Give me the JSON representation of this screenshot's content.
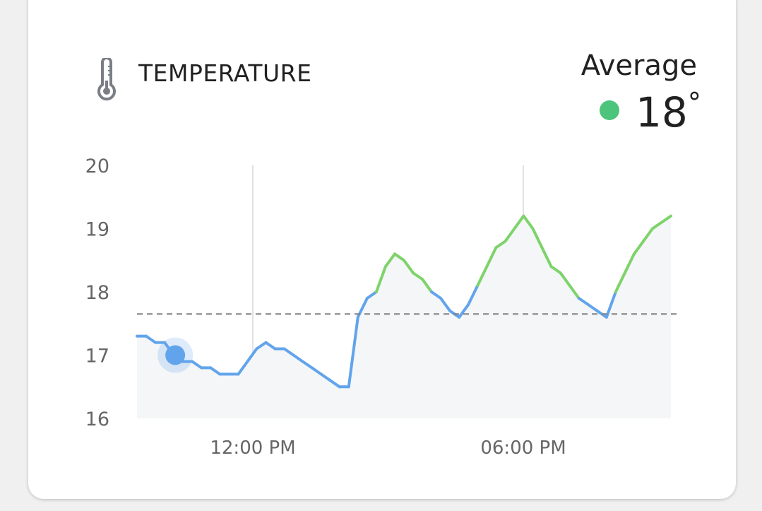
{
  "card": {
    "title": "TEMPERATURE",
    "average_label": "Average",
    "average_value": "18",
    "average_unit": "°",
    "average_dot_color": "#4cc47b",
    "icon": "thermometer-icon"
  },
  "chart_data": {
    "type": "line",
    "y_ticks": [
      "20",
      "19",
      "18",
      "17",
      "16"
    ],
    "x_ticks": [
      "12:00 PM",
      "06:00 PM"
    ],
    "ylim": [
      16,
      20
    ],
    "average_line": 17.65,
    "colors": {
      "below": "#62a4ec",
      "above": "#7ed36a",
      "fill": "#f4f6f7",
      "avg": "#808080"
    },
    "series": [
      {
        "values": [
          17.3,
          17.3,
          17.2,
          17.2,
          17.0,
          16.9,
          16.9,
          16.8,
          16.8,
          16.7,
          16.7,
          16.7,
          16.9,
          17.1,
          17.2,
          17.1,
          17.1,
          17.0,
          16.9,
          16.8,
          16.7,
          16.6,
          16.5,
          16.5,
          17.6,
          17.9,
          18.0,
          18.4,
          18.6,
          18.5,
          18.3,
          18.2,
          18.0,
          17.9,
          17.7,
          17.6,
          17.8,
          18.1,
          18.4,
          18.7,
          18.8,
          19.0,
          19.2,
          19.0,
          18.7,
          18.4,
          18.3,
          18.1,
          17.9,
          17.8,
          17.7,
          17.6,
          18.0,
          18.3,
          18.6,
          18.8,
          19.0,
          19.1,
          19.2
        ]
      }
    ],
    "highlight_index": 4
  }
}
